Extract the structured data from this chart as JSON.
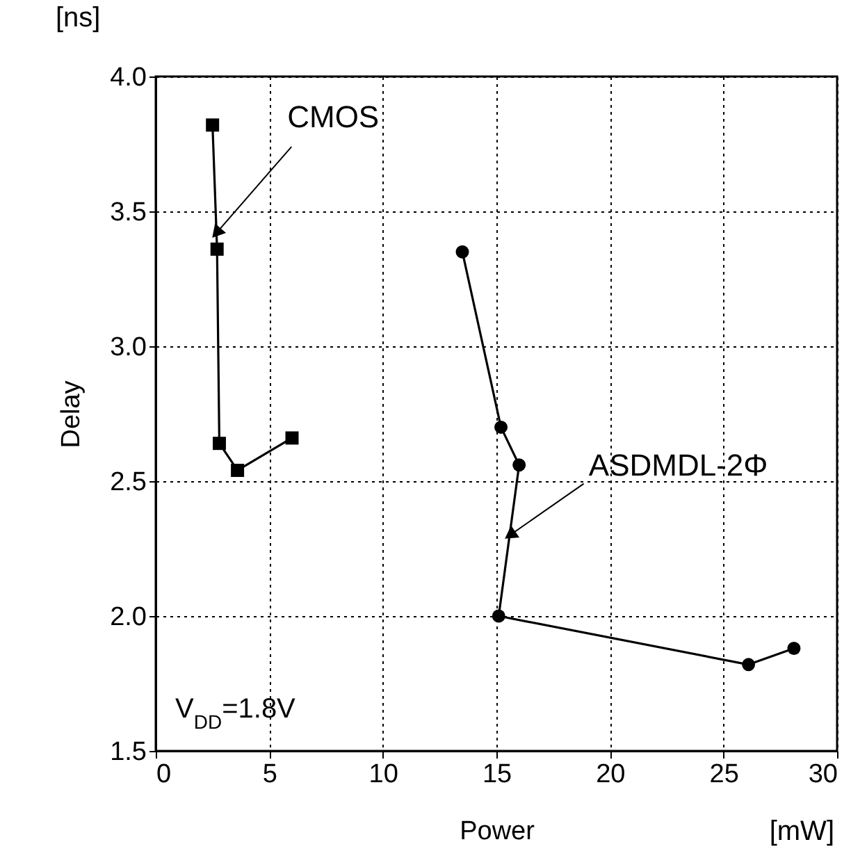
{
  "chart_data": {
    "type": "line",
    "xlabel": "Power",
    "ylabel": "Delay",
    "xlim": [
      0,
      30
    ],
    "xticks": [
      0,
      5,
      10,
      15,
      20,
      25,
      30
    ],
    "ylim": [
      1.5,
      4.0
    ],
    "yticks": [
      {
        "value": 1.5,
        "label": "1.5"
      },
      {
        "value": 2,
        "label": "2.0"
      },
      {
        "value": 2.5,
        "label": "2.5"
      },
      {
        "value": 3,
        "label": "3.0"
      },
      {
        "value": 3.5,
        "label": "3.5"
      },
      {
        "value": 4,
        "label": "4.0"
      }
    ],
    "grid": true,
    "line_style": "solid",
    "series": [
      {
        "color": "#000000",
        "marker": "square",
        "x": [
          2.5,
          2.7,
          2.8,
          3.6,
          6.0
        ],
        "values": [
          3.82,
          3.36,
          2.64,
          2.54,
          2.66
        ]
      },
      {
        "color": "#000000",
        "marker": "circle",
        "x": [
          13.5,
          15.2,
          16.0,
          15.1,
          26.1,
          28.1
        ],
        "values": [
          3.35,
          2.7,
          2.56,
          2.0,
          1.82,
          1.88
        ]
      }
    ],
    "annotations": [
      "[ns]",
      "[mW]",
      "V$_{DD}$=1.8V",
      {
        "text": "CMOS",
        "x": 2.67,
        "y": 3.42
      },
      {
        "text": "ASDMDL-2Φ",
        "x": 15.6,
        "y": 2.3
      }
    ]
  }
}
